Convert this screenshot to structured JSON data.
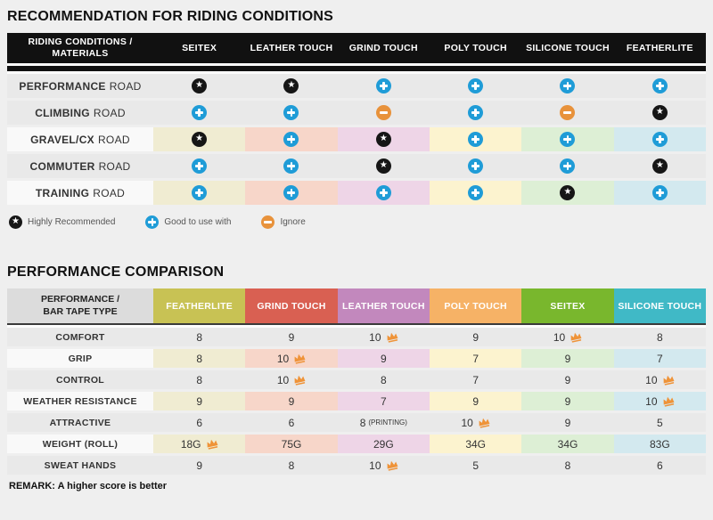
{
  "colors": {
    "page_bg": "#efefef",
    "header_black": "#111111",
    "icon_blue": "#1f9cd7",
    "icon_orange": "#e8923b",
    "icon_black": "#161616",
    "crown_orange": "#ef9338",
    "column_tints": [
      "#f0ecd2",
      "#f7d6c9",
      "#eed5e7",
      "#fcf3cf",
      "#ddefd5",
      "#d3e9ef"
    ],
    "gray_row": "#e9e9e9",
    "tinted_row_label_bg": "#f9f9f9"
  },
  "riding_table": {
    "title": "RECOMMENDATION FOR RIDING CONDITIONS",
    "header_label_line1": "RIDING CONDITIONS /",
    "header_label_line2": "MATERIALS",
    "columns": [
      "SEITEX",
      "LEATHER TOUCH",
      "GRIND TOUCH",
      "POLY TOUCH",
      "SILICONE TOUCH",
      "FEATHERLITE"
    ],
    "rows": [
      {
        "label_bold": "PERFORMANCE",
        "label_rest": "ROAD",
        "tinted": false,
        "icons": [
          "star",
          "star",
          "plus",
          "plus",
          "plus",
          "plus"
        ]
      },
      {
        "label_bold": "CLIMBING",
        "label_rest": "ROAD",
        "tinted": false,
        "icons": [
          "plus",
          "plus",
          "minus",
          "plus",
          "minus",
          "star"
        ]
      },
      {
        "label_bold": "GRAVEL/CX",
        "label_rest": "ROAD",
        "tinted": true,
        "icons": [
          "star",
          "plus",
          "star",
          "plus",
          "plus",
          "plus"
        ]
      },
      {
        "label_bold": "COMMUTER",
        "label_rest": "ROAD",
        "tinted": false,
        "icons": [
          "plus",
          "plus",
          "star",
          "plus",
          "plus",
          "star"
        ]
      },
      {
        "label_bold": "TRAINING",
        "label_rest": "ROAD",
        "tinted": true,
        "icons": [
          "plus",
          "plus",
          "plus",
          "plus",
          "star",
          "plus"
        ]
      }
    ],
    "legend": [
      {
        "icon": "star",
        "label": "Highly Recommended"
      },
      {
        "icon": "plus",
        "label": "Good to use with"
      },
      {
        "icon": "minus",
        "label": "Ignore"
      }
    ]
  },
  "performance_table": {
    "title": "PERFORMANCE COMPARISON",
    "header_label_line1": "PERFORMANCE /",
    "header_label_line2": "BAR TAPE TYPE",
    "columns": [
      {
        "name": "FEATHERLITE",
        "color": "#c8c254"
      },
      {
        "name": "GRIND TOUCH",
        "color": "#d96052"
      },
      {
        "name": "LEATHER TOUCH",
        "color": "#c288bd"
      },
      {
        "name": "POLY TOUCH",
        "color": "#f6b266"
      },
      {
        "name": "SEITEX",
        "color": "#79b72d"
      },
      {
        "name": "SILICONE TOUCH",
        "color": "#40b9c6"
      }
    ],
    "rows": [
      {
        "label": "COMFORT",
        "tinted": false,
        "cells": [
          {
            "v": "8"
          },
          {
            "v": "9"
          },
          {
            "v": "10",
            "crown": true
          },
          {
            "v": "9"
          },
          {
            "v": "10",
            "crown": true
          },
          {
            "v": "8"
          }
        ]
      },
      {
        "label": "GRIP",
        "tinted": true,
        "cells": [
          {
            "v": "8"
          },
          {
            "v": "10",
            "crown": true
          },
          {
            "v": "9"
          },
          {
            "v": "7"
          },
          {
            "v": "9"
          },
          {
            "v": "7"
          }
        ]
      },
      {
        "label": "CONTROL",
        "tinted": false,
        "cells": [
          {
            "v": "8"
          },
          {
            "v": "10",
            "crown": true
          },
          {
            "v": "8"
          },
          {
            "v": "7"
          },
          {
            "v": "9"
          },
          {
            "v": "10",
            "crown": true
          }
        ]
      },
      {
        "label": "WEATHER RESISTANCE",
        "tinted": true,
        "cells": [
          {
            "v": "9"
          },
          {
            "v": "9"
          },
          {
            "v": "7"
          },
          {
            "v": "9"
          },
          {
            "v": "9"
          },
          {
            "v": "10",
            "crown": true
          }
        ]
      },
      {
        "label": "ATTRACTIVE",
        "tinted": false,
        "cells": [
          {
            "v": "6"
          },
          {
            "v": "6"
          },
          {
            "v": "8",
            "note": "(PRINTING)"
          },
          {
            "v": "10",
            "crown": true
          },
          {
            "v": "9"
          },
          {
            "v": "5"
          }
        ]
      },
      {
        "label": "WEIGHT (ROLL)",
        "tinted": true,
        "cells": [
          {
            "v": "18G",
            "crown": true
          },
          {
            "v": "75G"
          },
          {
            "v": "29G"
          },
          {
            "v": "34G"
          },
          {
            "v": "34G"
          },
          {
            "v": "83G"
          }
        ]
      },
      {
        "label": "SWEAT HANDS",
        "tinted": false,
        "cells": [
          {
            "v": "9"
          },
          {
            "v": "8"
          },
          {
            "v": "10",
            "crown": true
          },
          {
            "v": "5"
          },
          {
            "v": "8"
          },
          {
            "v": "6"
          }
        ]
      }
    ],
    "remark": "REMARK: A higher score is better"
  }
}
